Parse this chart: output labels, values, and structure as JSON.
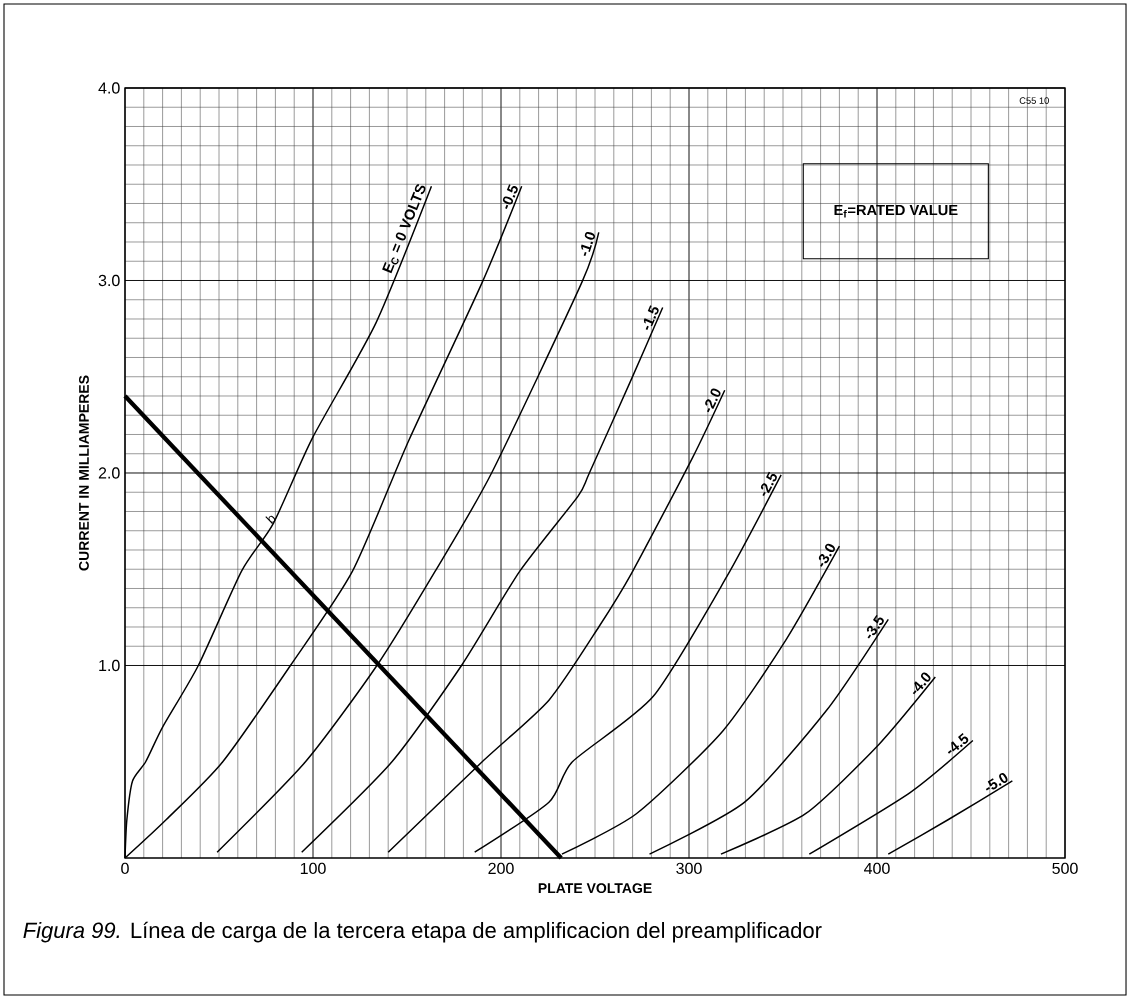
{
  "chart_data": {
    "type": "line",
    "xlabel": "PLATE VOLTAGE",
    "ylabel": "CURRENT IN MILLIAMPERES",
    "xlim": [
      0,
      500
    ],
    "ylim": [
      0,
      4
    ],
    "xticks": [
      0,
      100,
      200,
      300,
      400,
      500
    ],
    "yticks": [
      {
        "value": 1,
        "label": "1.0"
      },
      {
        "value": 2,
        "label": "2.0"
      },
      {
        "value": 3,
        "label": "3.0"
      },
      {
        "value": 4,
        "label": "4.0"
      }
    ],
    "grid": true,
    "series": [
      {
        "name": "E$_{C}$ = 0 VOLTS",
        "color": "#000000",
        "x": [
          0,
          1,
          4,
          11,
          20,
          39,
          62,
          79,
          99.6,
          133.5,
          163
        ],
        "values": [
          0,
          0.2,
          0.4,
          0.5,
          0.68,
          1.0,
          1.49,
          1.74,
          2.18,
          2.78,
          3.49
        ]
      },
      {
        "name": "-0.5",
        "color": "#000000",
        "x": [
          0,
          22,
          52,
          88,
          121,
          151,
          190,
          211
        ],
        "values": [
          0,
          0.2,
          0.5,
          1.0,
          1.49,
          2.17,
          2.99,
          3.49
        ]
      },
      {
        "name": "-1.0",
        "color": "#000000",
        "x": [
          49,
          96,
          134,
          165,
          195,
          243,
          252
        ],
        "values": [
          0.03,
          0.5,
          1.0,
          1.49,
          2.0,
          2.99,
          3.25
        ]
      },
      {
        "name": "-1.5",
        "color": "#000000",
        "x": [
          94,
          142,
          179,
          210,
          241,
          247,
          269.5,
          286
        ],
        "values": [
          0.03,
          0.5,
          1.0,
          1.49,
          1.88,
          2.0,
          2.49,
          2.86
        ]
      },
      {
        "name": "-2.0",
        "color": "#000000",
        "x": [
          140,
          190,
          225.5,
          252,
          269.5,
          301.9,
          319
        ],
        "values": [
          0.03,
          0.5,
          0.82,
          1.2,
          1.48,
          2.08,
          2.43
        ]
      },
      {
        "name": "-2.5",
        "color": "#000000",
        "x": [
          186,
          225.5,
          238,
          281,
          320,
          349
        ],
        "values": [
          0.03,
          0.29,
          0.5,
          0.84,
          1.46,
          1.99
        ]
      },
      {
        "name": "-3.0",
        "color": "#000000",
        "x": [
          232.4,
          272,
          318,
          352,
          380
        ],
        "values": [
          0.02,
          0.23,
          0.66,
          1.14,
          1.62
        ]
      },
      {
        "name": "-3.5",
        "color": "#000000",
        "x": [
          279,
          329.6,
          373.4,
          406
        ],
        "values": [
          0.02,
          0.29,
          0.77,
          1.24
        ]
      },
      {
        "name": "-4.0",
        "color": "#000000",
        "x": [
          317,
          362,
          401,
          431
        ],
        "values": [
          0.02,
          0.23,
          0.59,
          0.94
        ]
      },
      {
        "name": "-4.5",
        "color": "#000000",
        "x": [
          364,
          417.6,
          451
        ],
        "values": [
          0.02,
          0.34,
          0.61
        ]
      },
      {
        "name": "-5.0",
        "color": "#000000",
        "x": [
          406,
          438,
          472
        ],
        "values": [
          0.02,
          0.2,
          0.4
        ]
      },
      {
        "color": "#000000",
        "x": [
          0,
          232
        ],
        "values": [
          2.4,
          0
        ]
      }
    ],
    "annotations": [
      {
        "text": "b",
        "x": 78,
        "y": 1.72
      },
      "E$_{f}$=RATED VALUE",
      "C55 10",
      "*Figura 99.* Línea de carga de la tercera etapa de amplificacion del preamplificador"
    ]
  }
}
